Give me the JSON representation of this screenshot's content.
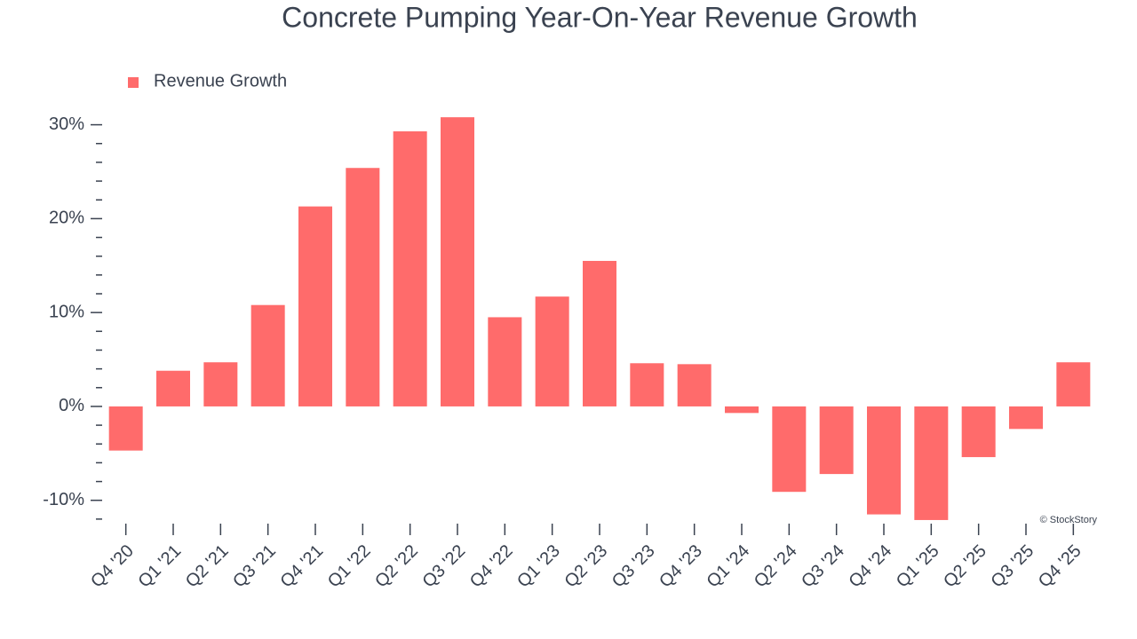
{
  "chart_data": {
    "type": "bar",
    "title": "Concrete Pumping Year-On-Year Revenue Growth",
    "categories": [
      "Q4 '20",
      "Q1 '21",
      "Q2 '21",
      "Q3 '21",
      "Q4 '21",
      "Q1 '22",
      "Q2 '22",
      "Q3 '22",
      "Q4 '22",
      "Q1 '23",
      "Q2 '23",
      "Q3 '23",
      "Q4 '23",
      "Q1 '24",
      "Q2 '24",
      "Q3 '24",
      "Q4 '24",
      "Q1 '25",
      "Q2 '25",
      "Q3 '25",
      "Q4 '25"
    ],
    "series": [
      {
        "name": "Revenue Growth",
        "color": "#ff6b6b",
        "values": [
          -4.7,
          3.8,
          4.7,
          10.8,
          21.3,
          25.4,
          29.3,
          30.8,
          9.5,
          11.7,
          15.5,
          4.6,
          4.5,
          -0.7,
          -9.1,
          -7.2,
          -11.5,
          -12.1,
          -5.4,
          -2.4,
          4.7
        ]
      }
    ],
    "ylim": [
      -12.2,
      31
    ],
    "yticks": [
      {
        "value": -10,
        "label": "-10%"
      },
      {
        "value": 0,
        "label": "0%"
      },
      {
        "value": 10,
        "label": "10%"
      },
      {
        "value": 20,
        "label": "20%"
      },
      {
        "value": 30,
        "label": "30%"
      }
    ],
    "minor_yticks": [
      -12,
      -8,
      -6,
      -4,
      -2,
      2,
      4,
      6,
      8,
      12,
      14,
      16,
      18,
      22,
      24,
      26,
      28
    ],
    "legend": "top-left",
    "grid": false,
    "credit": "© StockStory"
  }
}
